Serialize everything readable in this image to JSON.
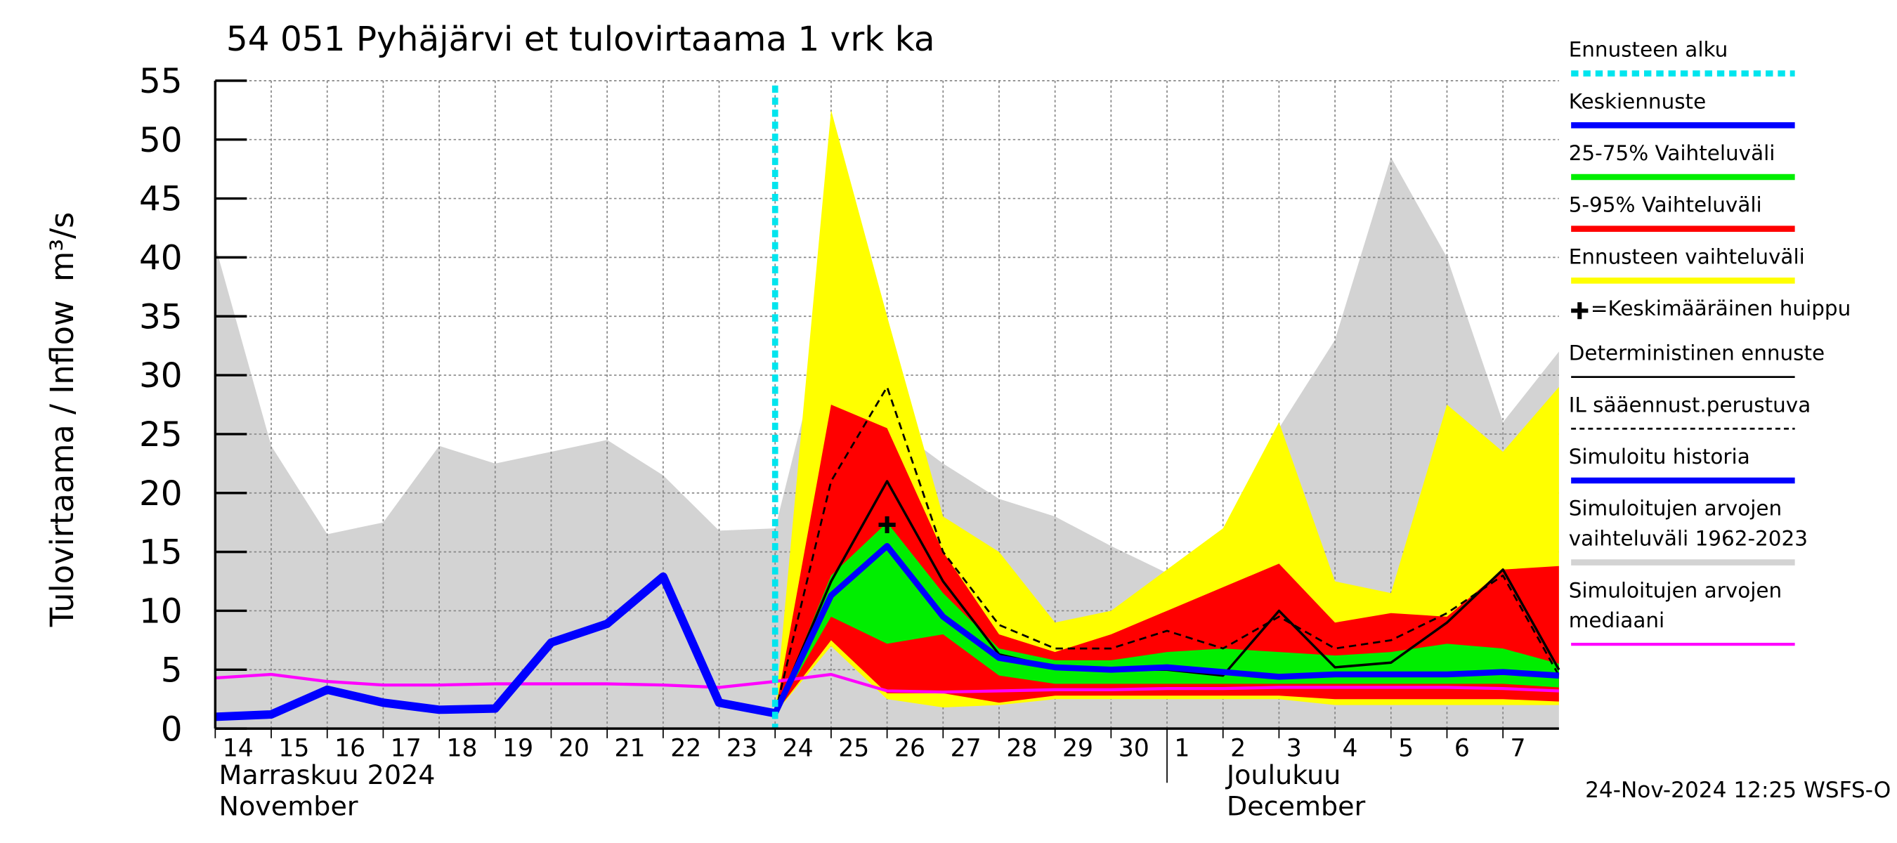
{
  "chart_data": {
    "type": "area",
    "title": "54 051 Pyhäjärvi et tulovirtaama 1 vrk ka",
    "ylabel": "Tulovirtaama / Inflow",
    "yunit": "m³/s",
    "footer": "24-Nov-2024 12:25 WSFS-O",
    "grid": true,
    "ylim": [
      0,
      55
    ],
    "yticks": [
      0,
      5,
      10,
      15,
      20,
      25,
      30,
      35,
      40,
      45,
      50,
      55
    ],
    "xlim": [
      "2024-11-14",
      "2024-12-08"
    ],
    "xticks": [
      {
        "value": "2024-11-14",
        "label": "14"
      },
      {
        "value": "2024-11-15",
        "label": "15"
      },
      {
        "value": "2024-11-16",
        "label": "16"
      },
      {
        "value": "2024-11-17",
        "label": "17"
      },
      {
        "value": "2024-11-18",
        "label": "18"
      },
      {
        "value": "2024-11-19",
        "label": "19"
      },
      {
        "value": "2024-11-20",
        "label": "20"
      },
      {
        "value": "2024-11-21",
        "label": "21"
      },
      {
        "value": "2024-11-22",
        "label": "22"
      },
      {
        "value": "2024-11-23",
        "label": "23"
      },
      {
        "value": "2024-11-24",
        "label": "24"
      },
      {
        "value": "2024-11-25",
        "label": "25"
      },
      {
        "value": "2024-11-26",
        "label": "26"
      },
      {
        "value": "2024-11-27",
        "label": "27"
      },
      {
        "value": "2024-11-28",
        "label": "28"
      },
      {
        "value": "2024-11-29",
        "label": "29"
      },
      {
        "value": "2024-11-30",
        "label": "30"
      },
      {
        "value": "2024-12-01",
        "label": "1"
      },
      {
        "value": "2024-12-02",
        "label": "2"
      },
      {
        "value": "2024-12-03",
        "label": "3"
      },
      {
        "value": "2024-12-04",
        "label": "4"
      },
      {
        "value": "2024-12-05",
        "label": "5"
      },
      {
        "value": "2024-12-06",
        "label": "6"
      },
      {
        "value": "2024-12-07",
        "label": "7"
      }
    ],
    "month_labels": [
      {
        "x": "2024-11-14",
        "lines": [
          "Marraskuu 2024",
          "November"
        ]
      },
      {
        "x": "2024-12-02",
        "lines": [
          "Joulukuu",
          "December"
        ]
      }
    ],
    "x": [
      "2024-11-14",
      "2024-11-15",
      "2024-11-16",
      "2024-11-17",
      "2024-11-18",
      "2024-11-19",
      "2024-11-20",
      "2024-11-21",
      "2024-11-22",
      "2024-11-23",
      "2024-11-24",
      "2024-11-25",
      "2024-11-26",
      "2024-11-27",
      "2024-11-28",
      "2024-11-29",
      "2024-11-30",
      "2024-12-01",
      "2024-12-02",
      "2024-12-03",
      "2024-12-04",
      "2024-12-05",
      "2024-12-06",
      "2024-12-07",
      "2024-12-08"
    ],
    "series": [
      {
        "name": "Ennusteen alku",
        "kind": "vline",
        "color": "#00e5ee",
        "x": "2024-11-24"
      },
      {
        "name": "Keskiennuste",
        "kind": "line",
        "color": "#0000ff",
        "values": [
          null,
          null,
          null,
          null,
          null,
          null,
          null,
          null,
          null,
          null,
          1.3,
          11.3,
          15.5,
          9.5,
          6,
          5.2,
          5,
          5.2,
          4.8,
          4.4,
          4.6,
          4.6,
          4.6,
          4.8,
          4.5
        ]
      },
      {
        "name": "25-75% Vaihteluväli",
        "kind": "band",
        "color": "#00ee00",
        "upper": [
          null,
          null,
          null,
          null,
          null,
          null,
          null,
          null,
          null,
          null,
          1.3,
          13,
          17.5,
          11.5,
          6.8,
          5.8,
          5.8,
          6.5,
          6.8,
          6.5,
          6.2,
          6.5,
          7.2,
          6.8,
          5.5
        ],
        "lower": [
          null,
          null,
          null,
          null,
          null,
          null,
          null,
          null,
          null,
          null,
          1.3,
          9.5,
          7.2,
          8,
          4.5,
          3.8,
          3.8,
          3.8,
          3.8,
          3.8,
          3.8,
          3.8,
          3.8,
          3.8,
          3.5
        ]
      },
      {
        "name": "5-95% Vaihteluväli",
        "kind": "band",
        "color": "#ff0000",
        "upper": [
          null,
          null,
          null,
          null,
          null,
          null,
          null,
          null,
          null,
          null,
          1.3,
          27.5,
          25.5,
          15,
          8,
          6.5,
          8,
          10,
          12,
          14,
          9,
          9.8,
          9.5,
          13.5,
          13.8
        ],
        "lower": [
          null,
          null,
          null,
          null,
          null,
          null,
          null,
          null,
          null,
          null,
          1.3,
          7.5,
          3,
          3,
          2.2,
          2.8,
          2.8,
          2.8,
          2.8,
          2.8,
          2.5,
          2.5,
          2.5,
          2.5,
          2.3
        ]
      },
      {
        "name": "Ennusteen vaihteluväli",
        "kind": "band",
        "color": "#ffff00",
        "upper": [
          null,
          null,
          null,
          null,
          null,
          null,
          null,
          null,
          null,
          null,
          1.3,
          52.5,
          35,
          18,
          15,
          9,
          10,
          13.5,
          17,
          26,
          12.5,
          11.5,
          27.5,
          23.5,
          29
        ],
        "lower": [
          null,
          null,
          null,
          null,
          null,
          null,
          null,
          null,
          null,
          null,
          1.3,
          7,
          2.5,
          1.8,
          2,
          2.5,
          2.5,
          2.5,
          2.5,
          2.5,
          2,
          2,
          2,
          2,
          2
        ]
      },
      {
        "name": "=Keskimääräinen huippu",
        "kind": "marker",
        "color": "#000000",
        "x": "2024-11-26",
        "value": 17.3
      },
      {
        "name": "Deterministinen ennuste",
        "kind": "line",
        "color": "#000000",
        "values": [
          null,
          null,
          null,
          null,
          null,
          null,
          null,
          null,
          null,
          null,
          1.3,
          12.5,
          21,
          12.5,
          6.3,
          5.2,
          5,
          5,
          4.5,
          10,
          5.2,
          5.6,
          9,
          13.5,
          5
        ]
      },
      {
        "name": "IL sääennust.perustuva",
        "kind": "dashed",
        "color": "#000000",
        "values": [
          null,
          null,
          null,
          null,
          null,
          null,
          null,
          null,
          null,
          null,
          1.3,
          21,
          29,
          15,
          8.8,
          6.8,
          6.8,
          8.3,
          6.8,
          9.5,
          6.8,
          7.5,
          9.8,
          13,
          4.5
        ]
      },
      {
        "name": "Simuloitu historia",
        "kind": "line",
        "color": "#0000ff",
        "values": [
          1,
          1.2,
          3.3,
          2.2,
          1.6,
          1.7,
          7.3,
          8.9,
          12.9,
          2.2,
          1.3,
          null,
          null,
          null,
          null,
          null,
          null,
          null,
          null,
          null,
          null,
          null,
          null,
          null,
          null
        ]
      },
      {
        "name": "Simuloitujen arvojen vaihteluväli 1962-2023",
        "kind": "band",
        "color": "#d3d3d3",
        "upper": [
          41,
          24,
          16.5,
          17.5,
          24,
          22.5,
          23.5,
          24.5,
          21.5,
          16.8,
          17,
          36,
          26,
          22.5,
          19.5,
          18,
          15.5,
          13.2,
          14.5,
          25.5,
          33,
          48.5,
          40,
          26,
          32
        ],
        "lower": [
          0,
          0,
          0,
          0,
          0,
          0,
          0,
          0,
          0,
          0,
          0,
          0,
          0,
          0,
          0,
          0,
          0,
          0,
          0,
          0,
          0,
          0,
          0,
          0,
          0
        ]
      },
      {
        "name": "Simuloitujen arvojen mediaani",
        "kind": "line",
        "color": "#ff00ff",
        "values": [
          4.3,
          4.6,
          4,
          3.7,
          3.7,
          3.8,
          3.8,
          3.8,
          3.7,
          3.5,
          4,
          4.6,
          3.2,
          3.1,
          3.2,
          3.3,
          3.3,
          3.4,
          3.4,
          3.5,
          3.5,
          3.5,
          3.5,
          3.4,
          3.2
        ]
      }
    ]
  }
}
